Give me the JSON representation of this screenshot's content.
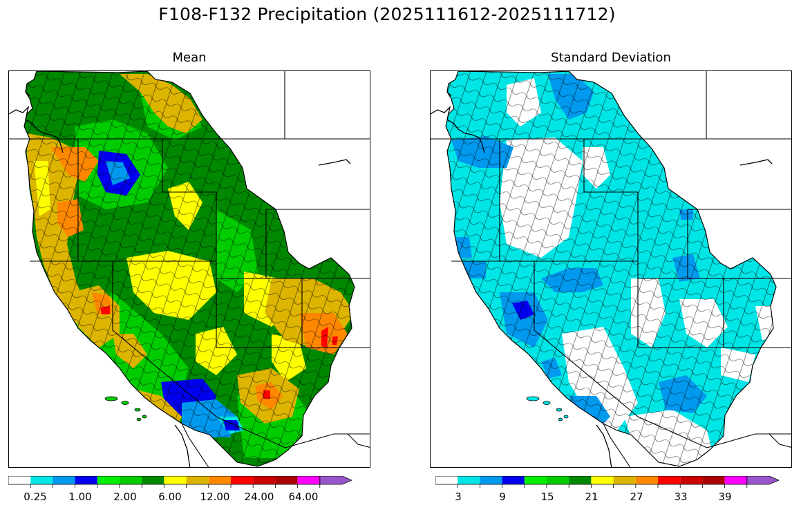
{
  "figure": {
    "title": "F108-F132 Precipitation (2025111612-2025111712)"
  },
  "panels": [
    {
      "id": "mean",
      "title": "Mean",
      "legend": {
        "colors": [
          "#ffffff",
          "#00e5e5",
          "#0099ee",
          "#0000ee",
          "#00ee00",
          "#00cc00",
          "#008800",
          "#ffff00",
          "#ddb400",
          "#ff8800",
          "#ff0000",
          "#cc0000",
          "#aa0000",
          "#ff00ff",
          "#9955cc"
        ],
        "tick_labels": [
          "0.25",
          "1.00",
          "2.00",
          "6.00",
          "12.00",
          "24.00",
          "64.00"
        ],
        "extend": "max"
      }
    },
    {
      "id": "std",
      "title": "Standard Deviation",
      "legend": {
        "colors": [
          "#ffffff",
          "#00e5e5",
          "#0099ee",
          "#0000ee",
          "#00ee00",
          "#00cc00",
          "#008800",
          "#ffff00",
          "#ddb400",
          "#ff8800",
          "#ff0000",
          "#cc0000",
          "#aa0000",
          "#ff00ff",
          "#9955cc"
        ],
        "tick_labels": [
          "3",
          "9",
          "15",
          "21",
          "27",
          "33",
          "39"
        ],
        "extend": "max"
      }
    }
  ]
}
